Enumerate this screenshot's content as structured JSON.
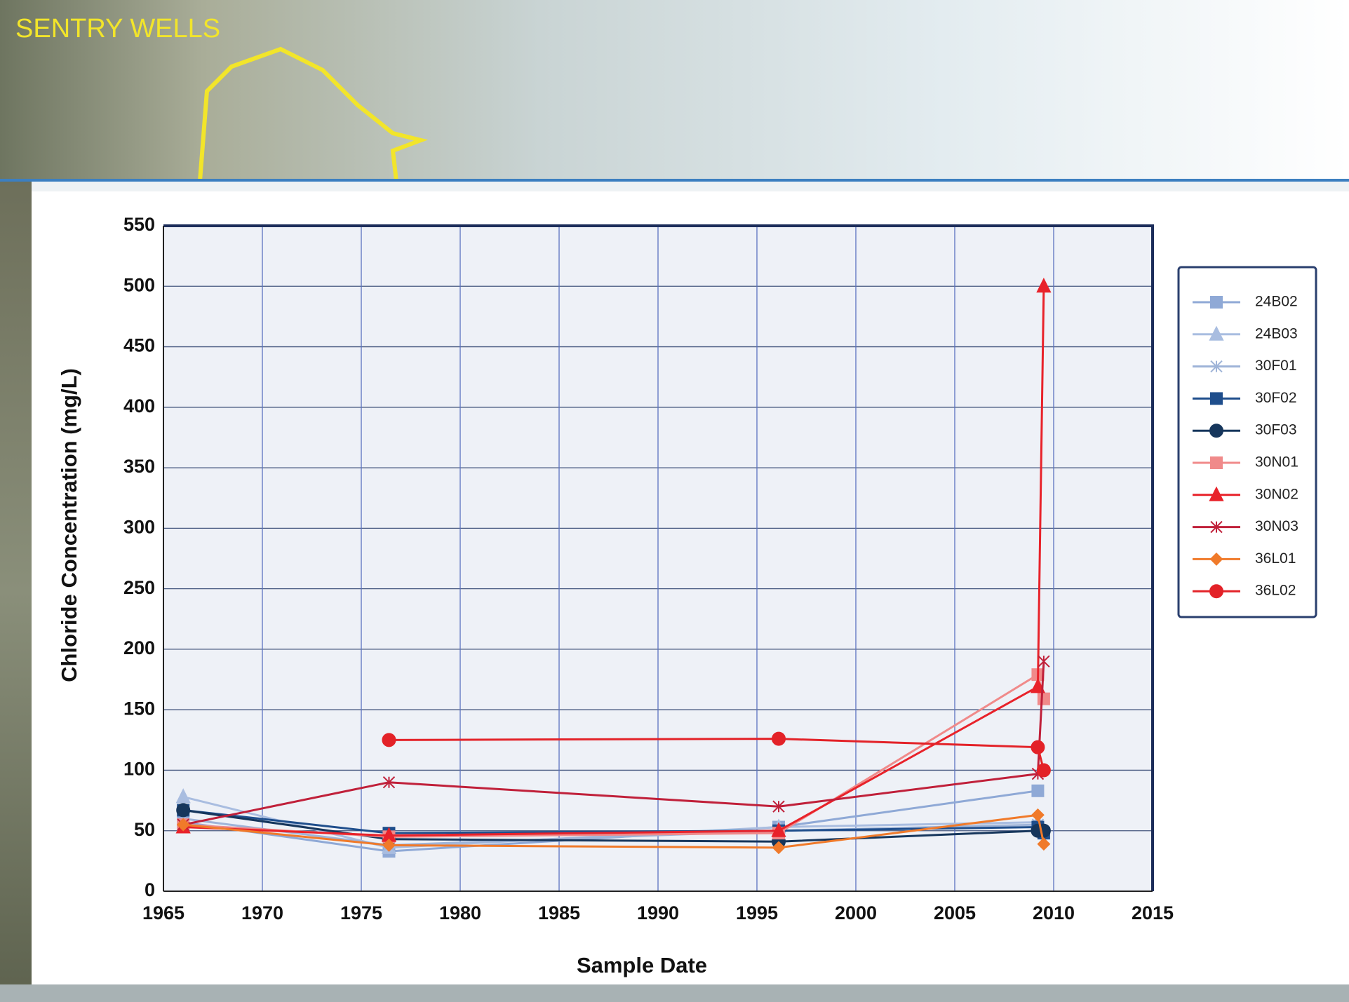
{
  "chart_data": {
    "type": "line",
    "title": "SENTRY WELLS",
    "x_label": "Sample Date",
    "y_label": "Chloride Concentration (mg/L)",
    "x": [
      1966,
      1976.4,
      1996.1,
      2009.2,
      2009.5
    ],
    "series": [
      {
        "name": "24B02",
        "color": "#8fa9d6",
        "marker": "square",
        "values": [
          57,
          33,
          53,
          83,
          null
        ]
      },
      {
        "name": "24B03",
        "color": "#a9bde0",
        "marker": "triangle",
        "values": [
          78,
          36,
          53,
          57,
          null
        ]
      },
      {
        "name": "30F01",
        "color": "#9fb4d8",
        "marker": "cross",
        "values": [
          60,
          38,
          50,
          55,
          null
        ]
      },
      {
        "name": "30F02",
        "color": "#1f4e8c",
        "marker": "square",
        "values": [
          67,
          48,
          50,
          53,
          48
        ]
      },
      {
        "name": "30F03",
        "color": "#16365c",
        "marker": "circle",
        "values": [
          67,
          43,
          41,
          50,
          50
        ]
      },
      {
        "name": "30N01",
        "color": "#f08a8a",
        "marker": "square",
        "values": [
          55,
          45,
          48,
          179,
          159
        ]
      },
      {
        "name": "30N02",
        "color": "#e8222a",
        "marker": "triangle",
        "values": [
          53,
          46,
          50,
          169,
          500
        ]
      },
      {
        "name": "30N03",
        "color": "#c0203a",
        "marker": "cross",
        "values": [
          55,
          90,
          70,
          97,
          190
        ]
      },
      {
        "name": "36L01",
        "color": "#f07a2a",
        "marker": "diamond",
        "values": [
          55,
          38,
          36,
          63,
          39
        ]
      },
      {
        "name": "36L02",
        "color": "#e32228",
        "marker": "circle",
        "values": [
          null,
          125,
          126,
          119,
          100
        ]
      }
    ],
    "xlim": [
      1965,
      2015
    ],
    "xticks": [
      1965,
      1970,
      1975,
      1980,
      1985,
      1990,
      1995,
      2000,
      2005,
      2010,
      2015
    ],
    "ylim": [
      0,
      550
    ],
    "yticks": [
      0,
      50,
      100,
      150,
      200,
      250,
      300,
      350,
      400,
      450,
      500,
      550
    ],
    "grid": true,
    "legend": "right"
  }
}
